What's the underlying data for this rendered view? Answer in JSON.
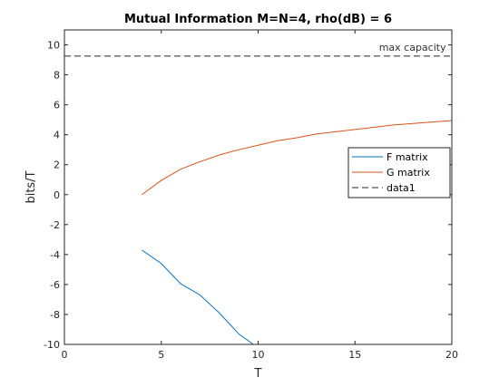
{
  "chart_data": {
    "type": "line",
    "title": "Mutual Information M=N=4, rho(dB) = 6",
    "xlabel": "T",
    "ylabel": "bits/T",
    "xlim": [
      0,
      20
    ],
    "ylim": [
      -10,
      11
    ],
    "xticks": [
      0,
      5,
      10,
      15,
      20
    ],
    "yticks": [
      -10,
      -8,
      -6,
      -4,
      -2,
      0,
      2,
      4,
      6,
      8,
      10
    ],
    "grid": false,
    "legend_position": "right",
    "series": [
      {
        "name": "F matrix",
        "color": "#0072BD",
        "style": "solid",
        "x": [
          4,
          5,
          6,
          7,
          8,
          9,
          9.75
        ],
        "y": [
          -3.7,
          -4.6,
          -5.95,
          -6.7,
          -7.9,
          -9.3,
          -10.0
        ]
      },
      {
        "name": "G matrix",
        "color": "#D95319",
        "style": "solid",
        "x": [
          4,
          5,
          6,
          7,
          8,
          9,
          10,
          11,
          12,
          13,
          14,
          15,
          16,
          17,
          18,
          19,
          20
        ],
        "y": [
          0.0,
          0.95,
          1.7,
          2.2,
          2.65,
          3.0,
          3.3,
          3.6,
          3.8,
          4.05,
          4.2,
          4.35,
          4.5,
          4.65,
          4.75,
          4.85,
          4.95
        ]
      },
      {
        "name": "data1",
        "color": "#262626",
        "style": "dashed",
        "x": [
          0,
          20
        ],
        "y": [
          9.25,
          9.25
        ]
      }
    ],
    "annotations": [
      {
        "text": "max capacity",
        "x": 19.7,
        "y": 9.25,
        "anchor": "end"
      }
    ]
  }
}
